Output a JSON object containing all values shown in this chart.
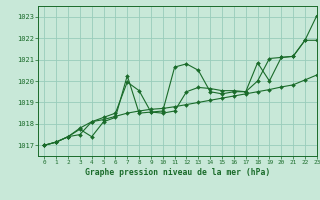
{
  "bg_color": "#c8e8d8",
  "grid_color": "#99ccbb",
  "line_color": "#1a6b2a",
  "marker_color": "#1a6b2a",
  "xlabel": "Graphe pression niveau de la mer (hPa)",
  "xlim": [
    -0.5,
    23
  ],
  "ylim": [
    1016.5,
    1023.5
  ],
  "yticks": [
    1017,
    1018,
    1019,
    1020,
    1021,
    1022,
    1023
  ],
  "xticks": [
    0,
    1,
    2,
    3,
    4,
    5,
    6,
    7,
    8,
    9,
    10,
    11,
    12,
    13,
    14,
    15,
    16,
    17,
    18,
    19,
    20,
    21,
    22,
    23
  ],
  "series": [
    [
      1017.0,
      1017.15,
      1017.4,
      1017.5,
      1018.1,
      1018.3,
      1018.5,
      1019.95,
      1019.55,
      1018.55,
      1018.6,
      1020.65,
      1020.8,
      1020.5,
      1019.5,
      1019.4,
      1019.5,
      1019.5,
      1020.0,
      1021.05,
      1021.1,
      1021.15,
      1021.9,
      1023.05
    ],
    [
      1017.0,
      1017.15,
      1017.4,
      1017.75,
      1017.4,
      1018.1,
      1018.3,
      1020.25,
      1018.5,
      1018.55,
      1018.5,
      1018.6,
      1019.5,
      1019.7,
      1019.65,
      1019.55,
      1019.55,
      1019.5,
      1020.85,
      1020.0,
      1021.1,
      1021.15,
      1021.9,
      1021.9
    ],
    [
      1017.0,
      1017.15,
      1017.4,
      1017.8,
      1018.1,
      1018.2,
      1018.35,
      1018.5,
      1018.6,
      1018.68,
      1018.72,
      1018.8,
      1018.9,
      1019.0,
      1019.1,
      1019.2,
      1019.3,
      1019.4,
      1019.5,
      1019.6,
      1019.72,
      1019.82,
      1020.05,
      1020.28
    ]
  ]
}
